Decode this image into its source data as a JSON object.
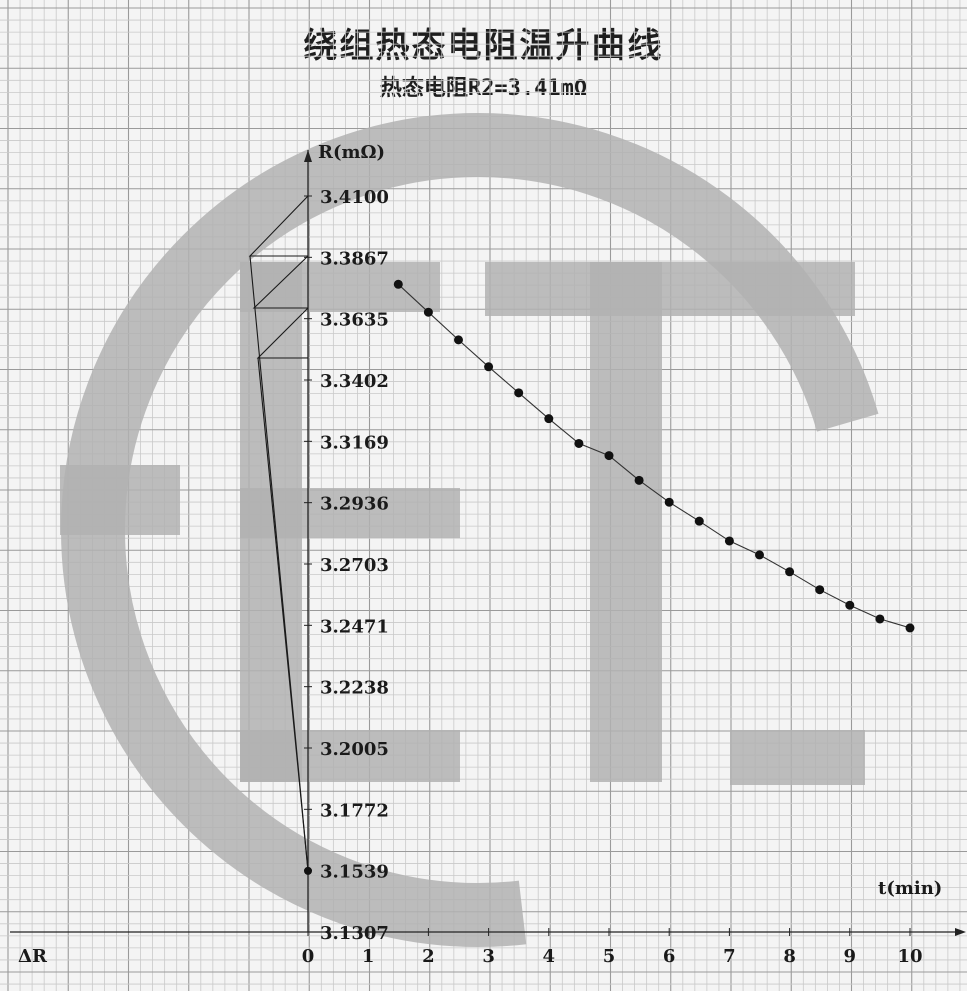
{
  "title": "绕组热态电阻温升曲线",
  "subtitle": "热态电阻R2=3.41mΩ",
  "chart_data": {
    "type": "scatter",
    "ylabel": "R(mΩ)",
    "xlabel": "t(min)",
    "delta_label": "ΔR",
    "ylim": [
      3.1307,
      3.41
    ],
    "xlim": [
      0,
      10
    ],
    "y_ticks": [
      "3.4100",
      "3.3867",
      "3.3635",
      "3.3402",
      "3.3169",
      "3.2936",
      "3.2703",
      "3.2471",
      "3.2238",
      "3.2005",
      "3.1772",
      "3.1539",
      "3.1307"
    ],
    "x_ticks": [
      "0",
      "1",
      "2",
      "3",
      "4",
      "5",
      "6",
      "7",
      "8",
      "9",
      "10"
    ],
    "grid": true,
    "series": [
      {
        "x": [
          1.5,
          2.0,
          2.5,
          3.0,
          3.5,
          4.0,
          4.5,
          5.0,
          5.5,
          6.0,
          6.5,
          7.0,
          7.5,
          8.0,
          8.5,
          9.0,
          9.5,
          10.0
        ],
        "y": [
          3.3765,
          3.3659,
          3.3554,
          3.3452,
          3.3353,
          3.3255,
          3.3161,
          3.3115,
          3.3021,
          3.2938,
          3.2866,
          3.2791,
          3.2738,
          3.2674,
          3.2606,
          3.2547,
          3.2495,
          3.2461
        ]
      }
    ],
    "extrapolated_point": {
      "x": 0,
      "y": 3.1539
    },
    "colors": {
      "marker": "#111111",
      "grid_minor": "#c9c9c9",
      "grid_major": "#9a9a9a",
      "watermark": "#b2b2b2"
    }
  }
}
